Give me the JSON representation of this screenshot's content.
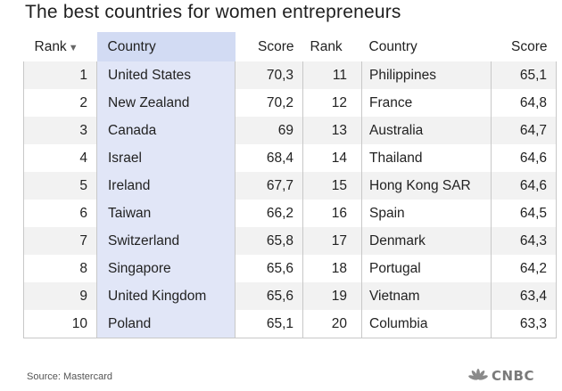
{
  "title": "The best countries for women entrepreneurs",
  "headers": {
    "rank": "Rank",
    "country": "Country",
    "score": "Score",
    "rank2": "Rank",
    "country2": "Country",
    "score2": "Score",
    "sort_icon": "sort-descending-icon"
  },
  "rows": [
    {
      "rank": "1",
      "country": "United States",
      "score": "70,3",
      "rank2": "11",
      "country2": "Philippines",
      "score2": "65,1"
    },
    {
      "rank": "2",
      "country": "New Zealand",
      "score": "70,2",
      "rank2": "12",
      "country2": "France",
      "score2": "64,8"
    },
    {
      "rank": "3",
      "country": "Canada",
      "score": "69",
      "rank2": "13",
      "country2": "Australia",
      "score2": "64,7"
    },
    {
      "rank": "4",
      "country": "Israel",
      "score": "68,4",
      "rank2": "14",
      "country2": "Thailand",
      "score2": "64,6"
    },
    {
      "rank": "5",
      "country": "Ireland",
      "score": "67,7",
      "rank2": "15",
      "country2": "Hong Kong SAR",
      "score2": "64,6"
    },
    {
      "rank": "6",
      "country": "Taiwan",
      "score": "66,2",
      "rank2": "16",
      "country2": "Spain",
      "score2": "64,5"
    },
    {
      "rank": "7",
      "country": "Switzerland",
      "score": "65,8",
      "rank2": "17",
      "country2": "Denmark",
      "score2": "64,3"
    },
    {
      "rank": "8",
      "country": "Singapore",
      "score": "65,6",
      "rank2": "18",
      "country2": "Portugal",
      "score2": "64,2"
    },
    {
      "rank": "9",
      "country": "United Kingdom",
      "score": "65,6",
      "rank2": "19",
      "country2": "Vietnam",
      "score2": "63,4"
    },
    {
      "rank": "10",
      "country": "Poland",
      "score": "65,1",
      "rank2": "20",
      "country2": "Columbia",
      "score2": "63,3"
    }
  ],
  "source": "Source: Mastercard",
  "logo": {
    "text": "CNBC",
    "icon": "peacock-icon"
  },
  "colors": {
    "country_column_body": "#e1e6f7",
    "country_column_header": "#d2dbf3",
    "row_stripe": "#f2f2f2",
    "grid_line": "#c8c8c8",
    "logo": "#7a7a7a"
  }
}
